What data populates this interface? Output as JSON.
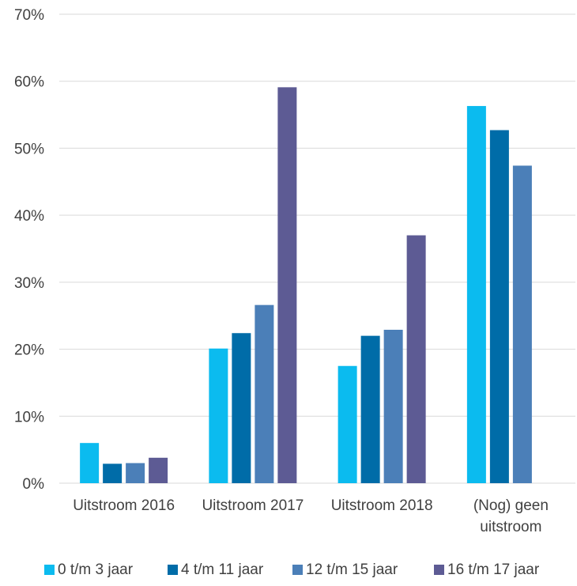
{
  "chart_data": {
    "type": "bar",
    "categories": [
      [
        "Uitstroom 2016"
      ],
      [
        "Uitstroom 2017"
      ],
      [
        "Uitstroom 2018"
      ],
      [
        "(Nog) geen",
        "uitstroom"
      ]
    ],
    "series": [
      {
        "name": "0 t/m 3 jaar",
        "color": "#0bbbef",
        "values": [
          6.0,
          20.1,
          17.5,
          56.3
        ]
      },
      {
        "name": "4 t/m 11 jaar",
        "color": "#006ca8",
        "values": [
          2.9,
          22.4,
          22.0,
          52.7
        ]
      },
      {
        "name": "12 t/m 15 jaar",
        "color": "#4b7fb8",
        "values": [
          3.0,
          26.6,
          22.9,
          47.4
        ]
      },
      {
        "name": "16 t/m 17 jaar",
        "color": "#5d5b94",
        "values": [
          3.8,
          59.1,
          37.0,
          null
        ]
      }
    ],
    "yticks": [
      "0%",
      "10%",
      "20%",
      "30%",
      "40%",
      "50%",
      "60%",
      "70%"
    ],
    "ylim": [
      0,
      70
    ],
    "grid": true,
    "gridColor": "#d9d9d9",
    "legend": "bottom"
  }
}
